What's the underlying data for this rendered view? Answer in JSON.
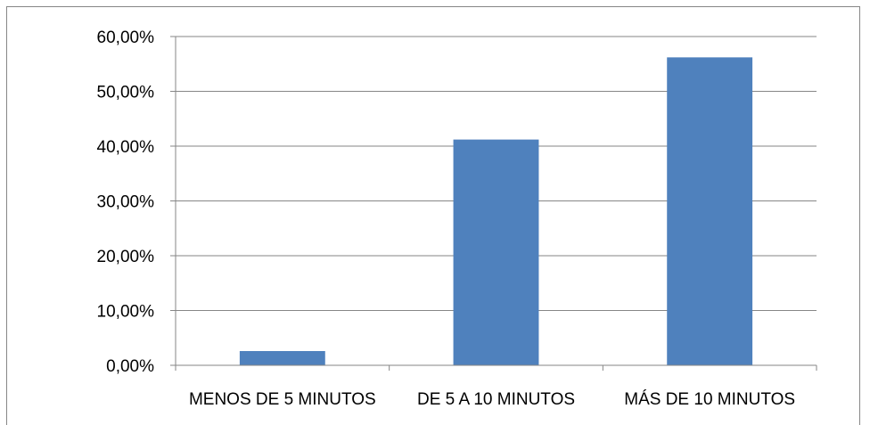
{
  "chart_data": {
    "type": "bar",
    "categories": [
      "MENOS DE 5 MINUTOS",
      "DE 5 A 10 MINUTOS",
      "MÁS DE 10 MINUTOS"
    ],
    "values": [
      2.6,
      41.2,
      56.2
    ],
    "ylim": [
      0,
      60
    ],
    "yticks": [
      0,
      10,
      20,
      30,
      40,
      50,
      60
    ],
    "ytick_labels": [
      "0,00%",
      "10,00%",
      "20,00%",
      "30,00%",
      "40,00%",
      "50,00%",
      "60,00%"
    ],
    "grid": true,
    "legend": "none",
    "colors": {
      "bar": "#4f81bd",
      "grid": "#868686",
      "axis": "#868686"
    }
  }
}
